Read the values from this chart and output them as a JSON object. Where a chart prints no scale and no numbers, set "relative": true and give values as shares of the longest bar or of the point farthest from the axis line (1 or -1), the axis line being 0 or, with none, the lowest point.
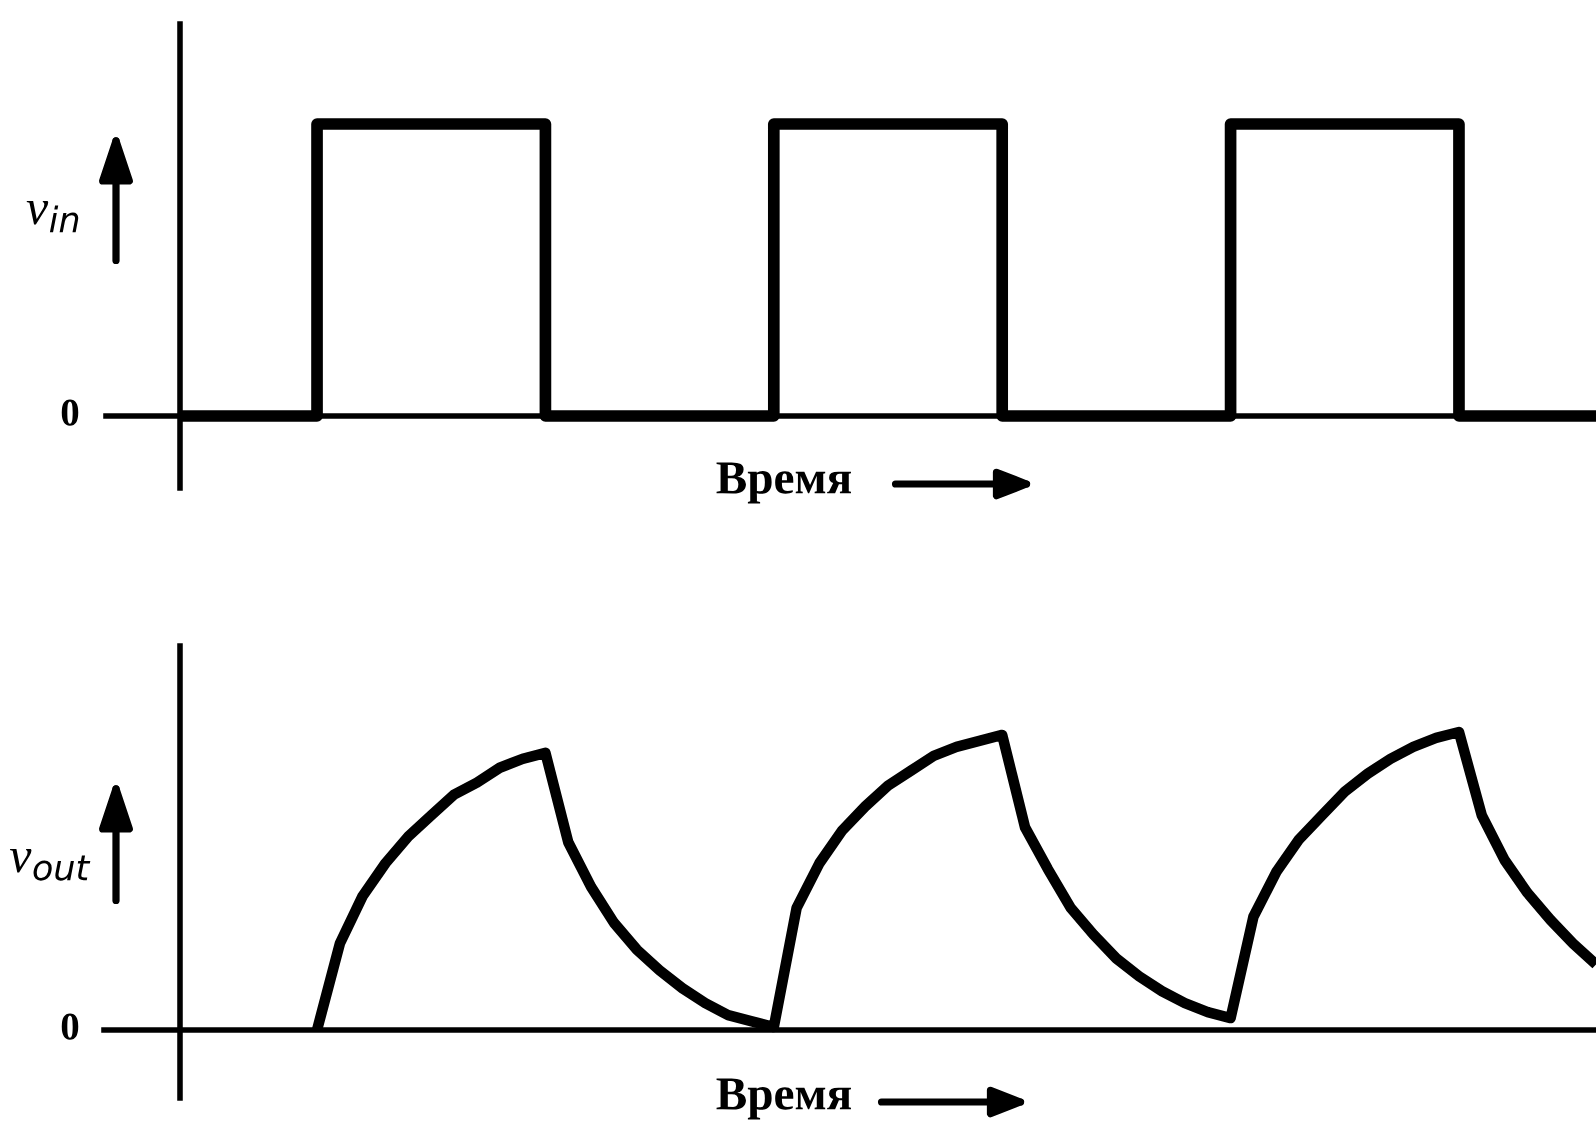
{
  "chart_data": [
    {
      "type": "step",
      "relative": true,
      "xlabel": "Время",
      "ylabel": "v$_{in}$",
      "annotations": [
        "0"
      ],
      "categories": [
        null,
        null,
        null,
        null,
        null,
        null,
        null,
        null,
        null,
        null,
        null,
        null,
        null,
        null,
        null,
        null,
        null,
        null,
        null,
        null,
        null,
        null,
        null,
        null,
        null,
        null,
        null,
        null,
        null,
        null,
        null,
        null,
        null,
        null,
        null,
        null,
        null,
        null,
        null,
        null,
        null,
        null,
        null,
        null,
        null,
        null,
        null,
        null,
        null,
        null,
        null,
        null,
        null,
        null,
        null,
        null,
        null,
        null,
        null,
        null,
        null,
        null,
        null
      ],
      "color": "#000000",
      "values": [
        0,
        0,
        0,
        0,
        0,
        0,
        1,
        1,
        1,
        1,
        1,
        1,
        1,
        1,
        1,
        1,
        0,
        0,
        0,
        0,
        0,
        0,
        0,
        0,
        0,
        0,
        1,
        1,
        1,
        1,
        1,
        1,
        1,
        1,
        1,
        1,
        0,
        0,
        0,
        0,
        0,
        0,
        0,
        0,
        0,
        0,
        1,
        1,
        1,
        1,
        1,
        1,
        1,
        1,
        1,
        1,
        0,
        0,
        0,
        0,
        0,
        0,
        0
      ]
    },
    {
      "type": "line",
      "relative": true,
      "xlabel": "Время",
      "ylabel": "v$_{out}$",
      "annotations": [
        "0"
      ],
      "categories": [
        null,
        null,
        null,
        null,
        null,
        null,
        null,
        null,
        null,
        null,
        null,
        null,
        null,
        null,
        null,
        null,
        null,
        null,
        null,
        null,
        null,
        null,
        null,
        null,
        null,
        null,
        null,
        null,
        null,
        null,
        null,
        null,
        null,
        null,
        null,
        null,
        null,
        null,
        null,
        null,
        null,
        null,
        null,
        null,
        null,
        null,
        null,
        null,
        null,
        null,
        null,
        null,
        null,
        null,
        null,
        null,
        null,
        null,
        null,
        null,
        null,
        null,
        null
      ],
      "color": "#000000",
      "values": [
        null,
        null,
        null,
        null,
        null,
        null,
        0,
        0.29,
        0.45,
        0.56,
        0.65,
        0.72,
        0.79,
        0.83,
        0.88,
        0.91,
        0.93,
        0.63,
        0.48,
        0.36,
        0.27,
        0.2,
        0.14,
        0.09,
        0.05,
        0.03,
        0.01,
        0.41,
        0.56,
        0.67,
        0.75,
        0.82,
        0.87,
        0.92,
        0.95,
        0.97,
        0.99,
        0.68,
        0.54,
        0.41,
        0.32,
        0.24,
        0.18,
        0.13,
        0.09,
        0.06,
        0.04,
        0.38,
        0.53,
        0.64,
        0.72,
        0.8,
        0.86,
        0.91,
        0.95,
        0.98,
        1,
        0.72,
        0.57,
        0.46,
        0.37,
        0.29,
        0.22
      ]
    }
  ]
}
